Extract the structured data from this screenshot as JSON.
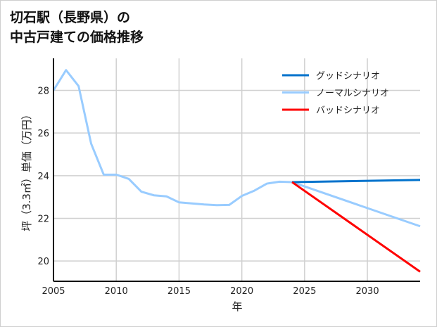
{
  "title_line1": "切石駅（長野県）の",
  "title_line2": "中古戸建ての価格推移",
  "chart_data": {
    "type": "line",
    "xlabel": "年",
    "ylabel": "坪（3.3㎡）単価（万円）",
    "xlim": [
      2005,
      2034.2
    ],
    "ylim": [
      19.05,
      29.5
    ],
    "xticks": [
      2005,
      2010,
      2015,
      2020,
      2025,
      2030
    ],
    "yticks": [
      20,
      22,
      24,
      26,
      28
    ],
    "grid": true,
    "legend_position": "top-right",
    "series": [
      {
        "name": "グッドシナリオ",
        "color": "#0072cc",
        "x": [
          2024,
          2034.2
        ],
        "y": [
          23.7,
          23.8
        ]
      },
      {
        "name": "ノーマルシナリオ",
        "color": "#99ccff",
        "x": [
          2005,
          2006,
          2007,
          2008,
          2009,
          2010,
          2011,
          2012,
          2013,
          2014,
          2015,
          2016,
          2017,
          2018,
          2019,
          2020,
          2021,
          2022,
          2023,
          2024,
          2034.2
        ],
        "y": [
          28.0,
          28.95,
          28.2,
          25.5,
          24.05,
          24.05,
          23.85,
          23.25,
          23.08,
          23.03,
          22.75,
          22.7,
          22.65,
          22.62,
          22.63,
          23.05,
          23.3,
          23.63,
          23.72,
          23.7,
          21.63
        ]
      },
      {
        "name": "バッドシナリオ",
        "color": "#ff0000",
        "x": [
          2024,
          2034.2
        ],
        "y": [
          23.7,
          19.5
        ]
      }
    ]
  }
}
